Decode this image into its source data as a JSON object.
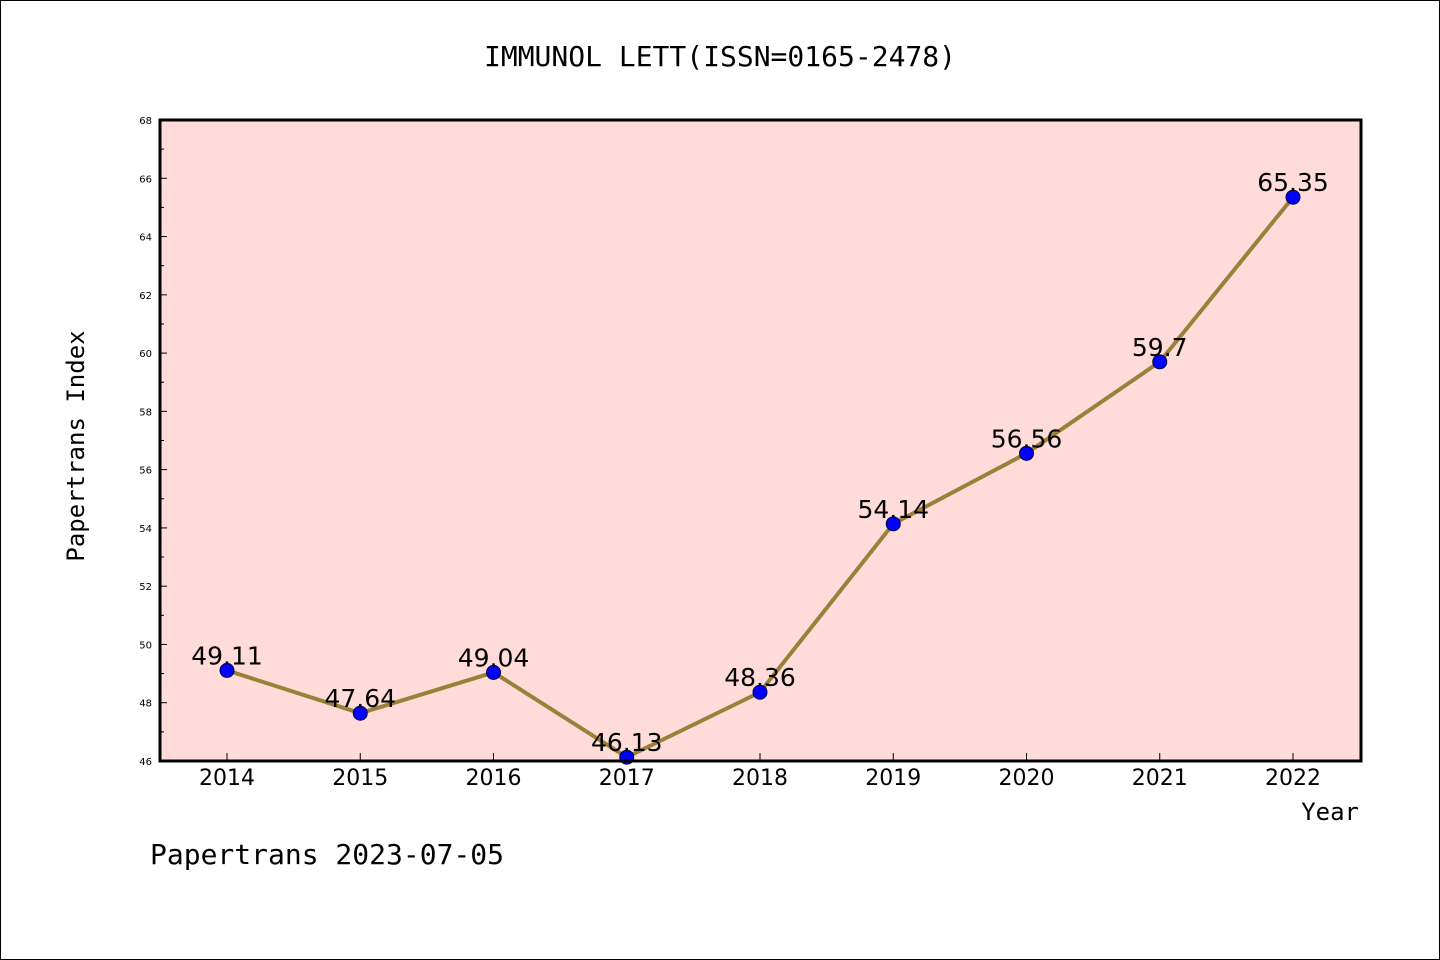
{
  "footer": "Papertrans 2023-07-05",
  "colors": {
    "plot_background": "#FFDCDA",
    "line": "#9B8039",
    "marker": "#0000FF",
    "axis": "#000000"
  },
  "chart_data": {
    "type": "line",
    "title": "IMMUNOL LETT(ISSN=0165-2478)",
    "xlabel": "Year",
    "ylabel": "Papertrans Index",
    "categories": [
      "2014",
      "2015",
      "2016",
      "2017",
      "2018",
      "2019",
      "2020",
      "2021",
      "2022"
    ],
    "series": [
      {
        "values": [
          49.11,
          47.64,
          49.04,
          46.13,
          48.36,
          54.14,
          56.56,
          59.7,
          65.35
        ],
        "labels": [
          "49.11",
          "47.64",
          "49.04",
          "46.13",
          "48.36",
          "54.14",
          "56.56",
          "59.7",
          "65.35"
        ]
      }
    ],
    "ylim": [
      46,
      68
    ],
    "yticks": [
      "46",
      "48",
      "50",
      "52",
      "54",
      "56",
      "58",
      "60",
      "62",
      "64",
      "66",
      "68"
    ],
    "grid": false,
    "legend": "none"
  }
}
